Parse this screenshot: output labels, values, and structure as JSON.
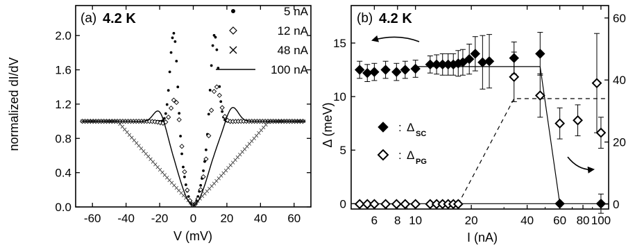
{
  "chart_data": [
    {
      "type": "line",
      "panel_label": "(a)",
      "temperature_label": "4.2 K",
      "xlabel": "V (mV)",
      "ylabel": "normalized  dI/dV",
      "xlim": [
        -70,
        70
      ],
      "ylim": [
        0.0,
        2.35
      ],
      "xticks": [
        -60,
        -40,
        -20,
        0,
        20,
        40,
        60
      ],
      "yticks": [
        "0.0",
        "0.4",
        "0.8",
        "1.2",
        "1.6",
        "2.0"
      ],
      "series": [
        {
          "name": "5 nA",
          "marker": "filled-dot",
          "peaks": [
            {
              "x": -11.5,
              "y": 2.08
            },
            {
              "x": 12.5,
              "y": 2.02
            }
          ],
          "zero_bias_y": 0.02,
          "background_y": 1.0
        },
        {
          "name": "12 nA",
          "marker": "open-diamond",
          "peaks": [
            {
              "x": -10,
              "y": 1.13
            },
            {
              "x": 13,
              "y": 1.12
            }
          ],
          "zero_bias_y": 0.02,
          "background_y": 1.0
        },
        {
          "name": "48 nA",
          "marker": "cross",
          "shape": "broad V-shaped gap, rising from 0.02 at 0 mV to 1.0 near ±45 mV",
          "zero_bias_y": 0.02,
          "background_y": 1.0
        },
        {
          "name": "100 nA",
          "marker": "solid-line",
          "peaks": [
            {
              "x": -20,
              "y": 1.2
            },
            {
              "x": 23,
              "y": 1.2
            }
          ],
          "zero_bias_y": 0.02,
          "background_y": 1.0
        }
      ]
    },
    {
      "type": "scatter",
      "panel_label": "(b)",
      "temperature_label": "4.2 K",
      "xlabel": "I (nA)",
      "ylabel": "Δ (meV)",
      "x_scale": "log",
      "xlim": [
        4.5,
        110
      ],
      "ylim": [
        -0.5,
        18.5
      ],
      "right_ylim": [
        -1.6,
        64
      ],
      "xticks": [
        "6",
        "8",
        "10",
        "20",
        "40",
        "60",
        "80",
        "100"
      ],
      "yticks": [
        "0",
        "5",
        "10",
        "15"
      ],
      "right_yticks": [
        "0",
        "20",
        "40",
        "60"
      ],
      "legend": [
        {
          "symbol": "◆",
          "label": "Δ",
          "subscript": "SC"
        },
        {
          "symbol": "◇",
          "label": "Δ",
          "subscript": "PG"
        }
      ],
      "legend_separator": ":",
      "series": [
        {
          "name": "Δ_SC",
          "marker": "filled-diamond",
          "x": [
            5,
            5.5,
            6,
            6.9,
            7.9,
            8.8,
            10,
            12,
            13,
            14,
            15,
            16,
            17,
            18,
            19.5,
            21,
            23,
            25,
            34,
            47,
            60,
            100
          ],
          "y": [
            12.5,
            12.2,
            12.3,
            12.5,
            12.3,
            12.5,
            12.6,
            13.0,
            13.0,
            13.0,
            13.0,
            13.0,
            13.1,
            13.2,
            13.5,
            14.0,
            13.2,
            13.3,
            13.6,
            14.0,
            0.0,
            0.0
          ],
          "yerr": [
            0.8,
            0.8,
            0.8,
            0.8,
            0.8,
            0.8,
            0.8,
            0.8,
            0.9,
            1.0,
            1.0,
            1.0,
            1.2,
            1.2,
            1.4,
            1.6,
            2.5,
            2.5,
            1.5,
            2.0,
            0.0,
            0.9
          ]
        },
        {
          "name": "Δ_PG",
          "marker": "open-diamond",
          "x": [
            5,
            5.5,
            6,
            6.9,
            7.9,
            8.8,
            10,
            12,
            13,
            14,
            15,
            16,
            17,
            34,
            47,
            60,
            75,
            95,
            100
          ],
          "y_right_axis": [
            0,
            0,
            0,
            0,
            0,
            0,
            0,
            0,
            0,
            0,
            0,
            0,
            0,
            41,
            35,
            26,
            27,
            39,
            23
          ],
          "yerr_right_axis": [
            0,
            0,
            0,
            0,
            0,
            0,
            0,
            0,
            0,
            0,
            0,
            0,
            0,
            8,
            7,
            5,
            5,
            16,
            5
          ]
        }
      ],
      "guide_lines": [
        {
          "style": "solid",
          "description": "Δ_SC level at about 12.8 meV from 10 nA to 47 nA, dropping to 0 at 60 nA"
        },
        {
          "style": "solid",
          "description": "zero level of Δ_PG from 5 nA to 110 nA"
        },
        {
          "style": "dashed",
          "description": "rising from 0 at about 17 nA to the Δ_PG level near 34 on the right axis at about 34 nA, then flat to 110 nA"
        }
      ],
      "arrows": [
        {
          "direction": "left",
          "points_to": "left axis (Δ_SC)"
        },
        {
          "direction": "right",
          "points_to": "right axis (Δ_PG)"
        }
      ]
    }
  ]
}
